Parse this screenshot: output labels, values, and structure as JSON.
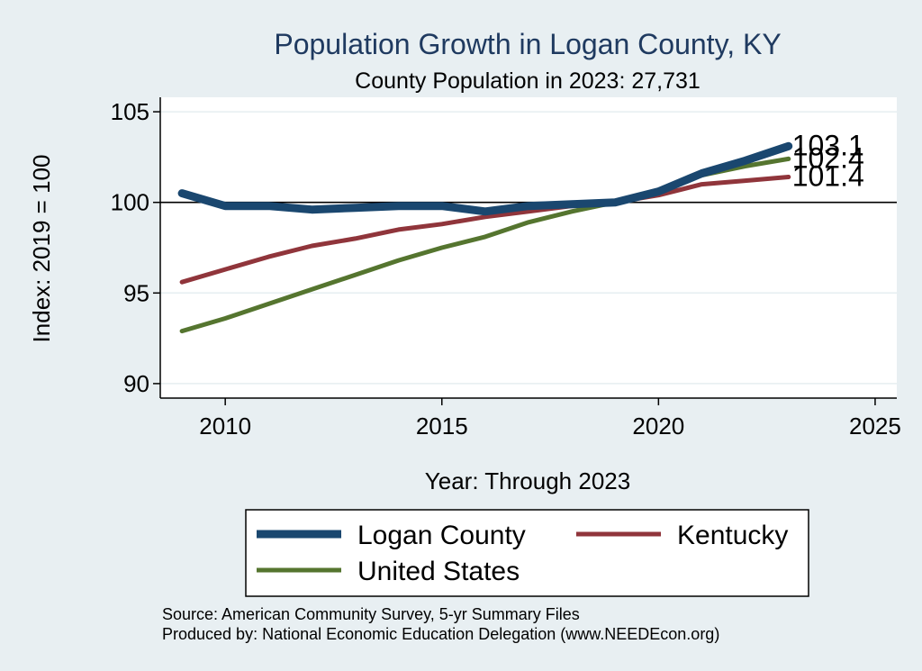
{
  "chart_data": {
    "type": "line",
    "title": "Population Growth in Logan County, KY",
    "subtitle": "County Population in 2023: 27,731",
    "xlabel": "Year: Through 2023",
    "ylabel": "Index: 2019 = 100",
    "xlim": [
      2008.5,
      2025.5
    ],
    "ylim": [
      89.2,
      105.8
    ],
    "xticks": [
      2010,
      2015,
      2020,
      2025
    ],
    "yticks": [
      90,
      95,
      100,
      105
    ],
    "reference_line": 100,
    "grid": true,
    "legend_position": "bottom",
    "x": [
      2009,
      2010,
      2011,
      2012,
      2013,
      2014,
      2015,
      2016,
      2017,
      2018,
      2019,
      2020,
      2021,
      2022,
      2023
    ],
    "series": [
      {
        "name": "Logan  County",
        "color": "#1a476f",
        "values": [
          100.5,
          99.8,
          99.8,
          99.6,
          99.7,
          99.8,
          99.8,
          99.5,
          99.8,
          99.9,
          100.0,
          100.6,
          101.6,
          102.3,
          103.1
        ],
        "end_label": "103.1"
      },
      {
        "name": "Kentucky",
        "color": "#90353b",
        "values": [
          95.6,
          96.3,
          97.0,
          97.6,
          98.0,
          98.5,
          98.8,
          99.2,
          99.5,
          99.8,
          100.0,
          100.4,
          101.0,
          101.2,
          101.4
        ],
        "end_label": "101.4"
      },
      {
        "name": "United States",
        "color": "#55752f",
        "values": [
          92.9,
          93.6,
          94.4,
          95.2,
          96.0,
          96.8,
          97.5,
          98.1,
          98.9,
          99.5,
          100.0,
          100.6,
          101.5,
          102.0,
          102.4
        ],
        "end_label": "102.4"
      }
    ]
  },
  "notes": {
    "source": "Source: American Community Survey, 5-yr Summary Files",
    "produced": "Produced by: National Economic Education Delegation (www.NEEDEcon.org)"
  }
}
